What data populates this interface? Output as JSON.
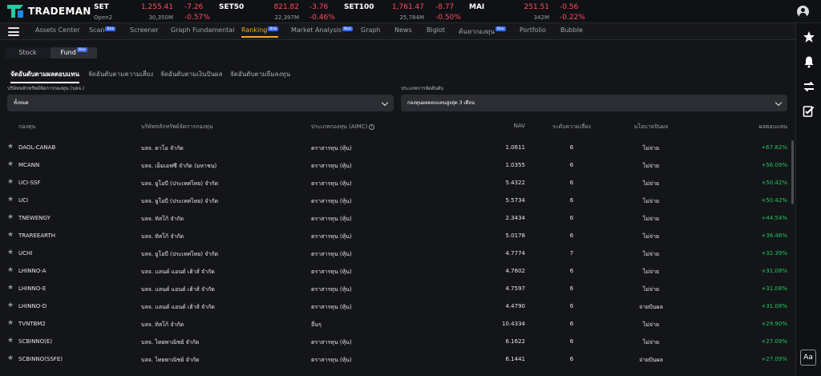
{
  "app": {
    "name": "TRADEMAN"
  },
  "indices": [
    {
      "name": "SET",
      "sub": "Open2",
      "value": "1,255.41",
      "volume": "30,350M",
      "change": "-7.26",
      "percent": "-0.57%"
    },
    {
      "name": "SET50",
      "sub": "",
      "value": "821.82",
      "volume": "22,397M",
      "change": "-3.76",
      "percent": "-0.46%"
    },
    {
      "name": "SET100",
      "sub": "",
      "value": "1,761.47",
      "volume": "25,784M",
      "change": "-8.77",
      "percent": "-0.50%"
    },
    {
      "name": "MAI",
      "sub": "",
      "value": "251.51",
      "volume": "342M",
      "change": "-0.56",
      "percent": "-0.22%"
    }
  ],
  "nav": {
    "items": [
      "Assets Center",
      "Scan",
      "Screener",
      "Graph Fundamental",
      "Ranking",
      "Market Analysis",
      "Graph",
      "News",
      "Biglot",
      "ค้นหากองทุน",
      "Portfolio",
      "Bubble"
    ],
    "new_badge": "New"
  },
  "segments": {
    "stock": "Stock",
    "fund": "Fund",
    "new_badge": "New"
  },
  "sub_tabs": [
    "จัดอันดับตามผลตอบแทน",
    "จัดอันดับตามความเสี่ยง",
    "จัดอันดับตามเงินปันผล",
    "จัดอันดับตามธีมลงทุน"
  ],
  "filters": {
    "company_label": "บริษัทหลักทรัพย์จัดการกองทุน (บลจ.)",
    "company_value": "ทั้งหมด",
    "rank_label": "ประเภทการจัดอันดับ",
    "rank_value": "กองทุนผลตอบแทนสูงสุด 3 เดือน"
  },
  "table": {
    "headers": [
      "กองทุน",
      "บริษัทหลักทรัพย์จัดการกองทุน",
      "ประเภทกองทุน (AIMC)",
      "NAV",
      "ระดับความเสี่ยง",
      "นโยบายปันผล",
      "ผลตอบแทน"
    ],
    "rows": [
      [
        "DAOL-CANAB",
        "บลจ. ดาโอ จำกัด",
        "ตราสารทุน (หุ้น)",
        "1.0611",
        "6",
        "ไม่จ่าย",
        "+67.82%"
      ],
      [
        "MCANN",
        "บลจ. เอ็มเอฟซี จำกัด (มหาชน)",
        "ตราสารทุน (หุ้น)",
        "1.0355",
        "6",
        "ไม่จ่าย",
        "+56.09%"
      ],
      [
        "UCI-SSF",
        "บลจ. ยูโอบี (ประเทศไทย) จำกัด",
        "ตราสารทุน (หุ้น)",
        "5.4322",
        "6",
        "ไม่จ่าย",
        "+50.42%"
      ],
      [
        "UCI",
        "บลจ. ยูโอบี (ประเทศไทย) จำกัด",
        "ตราสารทุน (หุ้น)",
        "5.5734",
        "6",
        "ไม่จ่าย",
        "+50.42%"
      ],
      [
        "TNEWENGY",
        "บลจ. ทิสโก้ จำกัด",
        "ตราสารทุน (หุ้น)",
        "2.3434",
        "6",
        "ไม่จ่าย",
        "+44.54%"
      ],
      [
        "TRAREEARTH",
        "บลจ. ทิสโก้ จำกัด",
        "ตราสารทุน (หุ้น)",
        "5.0178",
        "6",
        "ไม่จ่าย",
        "+36.46%"
      ],
      [
        "UCHI",
        "บลจ. ยูโอบี (ประเทศไทย) จำกัด",
        "ตราสารทุน (หุ้น)",
        "4.7774",
        "7",
        "ไม่จ่าย",
        "+32.39%"
      ],
      [
        "LHINNO-A",
        "บลจ. แลนด์ แอนด์ เฮ้าส์ จำกัด",
        "ตราสารทุน (หุ้น)",
        "4.7602",
        "6",
        "ไม่จ่าย",
        "+31.08%"
      ],
      [
        "LHINNO-E",
        "บลจ. แลนด์ แอนด์ เฮ้าส์ จำกัด",
        "ตราสารทุน (หุ้น)",
        "4.7597",
        "6",
        "ไม่จ่าย",
        "+31.08%"
      ],
      [
        "LHINNO-D",
        "บลจ. แลนด์ แอนด์ เฮ้าส์ จำกัด",
        "ตราสารทุน (หุ้น)",
        "4.4790",
        "6",
        "จ่ายปันผล",
        "+31.08%"
      ],
      [
        "TVNTBM2",
        "บลจ. ทิสโก้ จำกัด",
        "อื่นๆ",
        "10.4334",
        "6",
        "ไม่จ่าย",
        "+29.90%"
      ],
      [
        "SCBINNO(E)",
        "บลจ. ไทยพาณิชย์ จำกัด",
        "ตราสารทุน (หุ้น)",
        "6.1622",
        "6",
        "ไม่จ่าย",
        "+27.09%"
      ],
      [
        "SCBINNO(SSFE)",
        "บลจ. ไทยพาณิชย์ จำกัด",
        "ตราสารทุน (หุ้น)",
        "6.1441",
        "6",
        "จ่ายปันผล",
        "+27.09%"
      ]
    ]
  },
  "font_button": "Aa",
  "colors": {
    "accent": "#f5a623",
    "negative": "#ff4d5e",
    "positive": "#22c55e",
    "background": "#141519"
  }
}
